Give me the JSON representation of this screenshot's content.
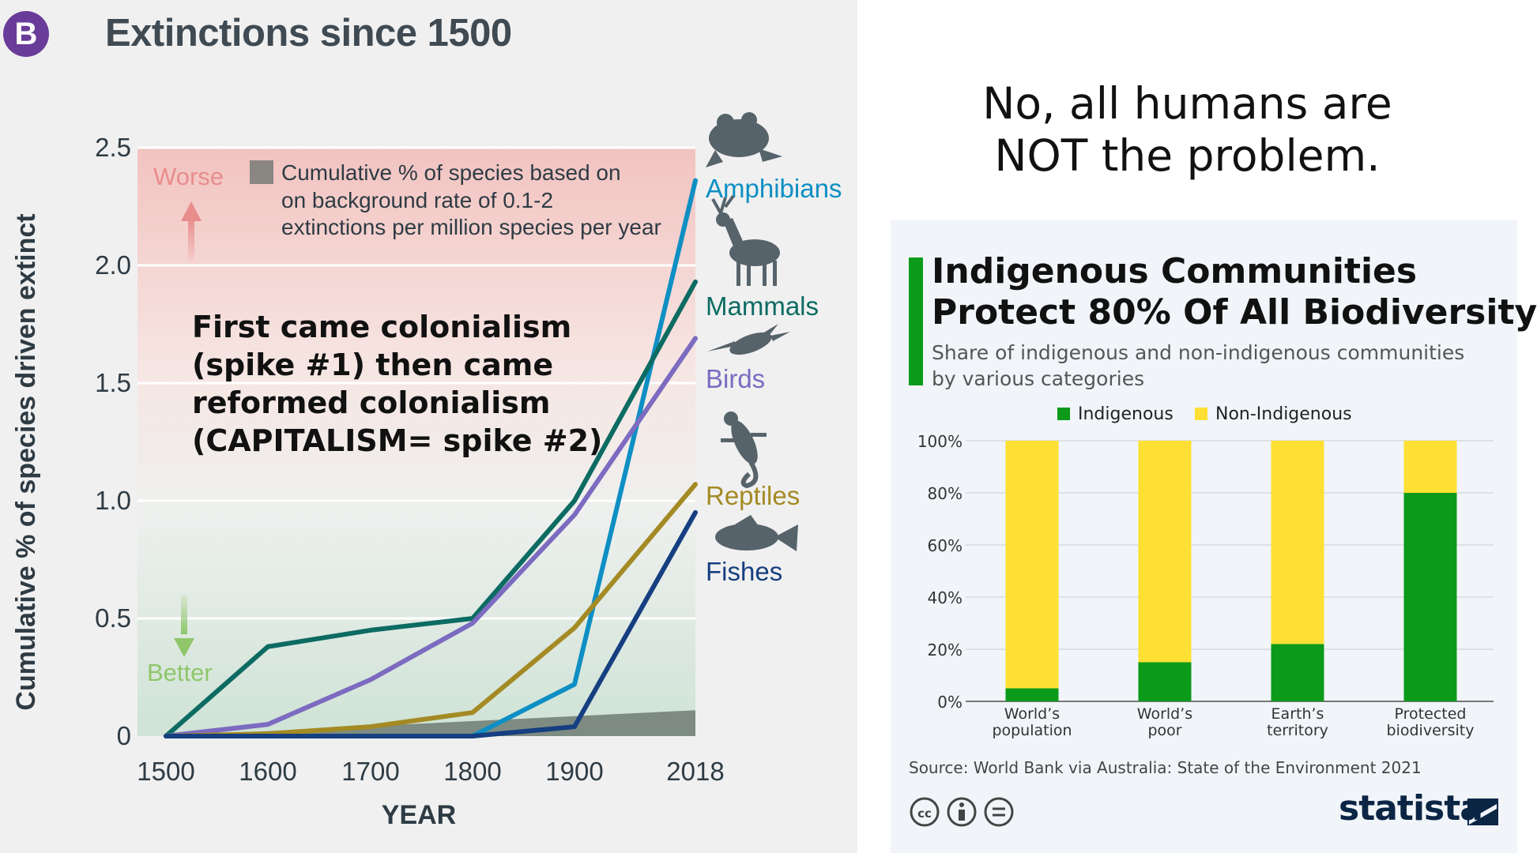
{
  "page": {
    "badge": "B",
    "left_title": "Extinctions since 1500",
    "headline": [
      "No, all humans are",
      "NOT the problem."
    ],
    "annotation": [
      "First came colonialism",
      "(spike #1) then came",
      "reformed colonialism",
      "(CAPITALISM= spike #2)"
    ]
  },
  "chart_data": [
    {
      "type": "line",
      "title": "Extinctions since 1500",
      "xlabel": "YEAR",
      "ylabel": "Cumulative % of species driven extinct",
      "x": [
        1500,
        1600,
        1700,
        1800,
        1900,
        2018
      ],
      "x_tick_labels": [
        "1500",
        "1600",
        "1700",
        "1800",
        "1900",
        "2018"
      ],
      "y_ticks": [
        0,
        0.5,
        1.0,
        1.5,
        2.0,
        2.5
      ],
      "y_tick_labels": [
        "0",
        "0.5",
        "1.0",
        "1.5",
        "2.0",
        "2.5"
      ],
      "ylim": [
        0,
        2.5
      ],
      "grid": true,
      "series": [
        {
          "name": "Amphibians",
          "color": "#0e8fc4",
          "values": [
            0,
            0,
            0,
            0,
            0.22,
            2.36
          ]
        },
        {
          "name": "Mammals",
          "color": "#0c6b62",
          "values": [
            0,
            0.38,
            0.45,
            0.5,
            1.0,
            1.93
          ]
        },
        {
          "name": "Birds",
          "color": "#7c6bc0",
          "values": [
            0,
            0.05,
            0.24,
            0.48,
            0.94,
            1.69
          ]
        },
        {
          "name": "Reptiles",
          "color": "#a48a24",
          "values": [
            0,
            0.01,
            0.04,
            0.1,
            0.46,
            1.07
          ]
        },
        {
          "name": "Fishes",
          "color": "#153f80",
          "values": [
            0,
            0,
            0,
            0,
            0.04,
            0.95
          ]
        }
      ],
      "background_band": {
        "label": "Cumulative % of species based on background rate of 0.1-2 extinctions per million species per year",
        "label_lines": [
          "Cumulative % of species based on",
          "on background rate of 0.1-2",
          "extinctions per million species per year"
        ],
        "start": 0.0,
        "end": 0.11,
        "color": "#7d8b82"
      },
      "worse_label": "Worse",
      "better_label": "Better",
      "colors": {
        "worse": "#e98c8c",
        "better": "#8fc66a",
        "zone_top": "#f2c3c0",
        "zone_bottom": "#cfe3d6"
      }
    },
    {
      "type": "bar",
      "stacked": true,
      "title": "Indigenous Communities Protect 80% Of All Biodiversity",
      "title_lines": [
        "Indigenous Communities",
        "Protect 80% Of All Biodiversity"
      ],
      "subtitle": "Share of indigenous and non-indigenous communities by various categories",
      "subtitle_lines": [
        "Share of indigenous and non-indigenous communities",
        "by various categories"
      ],
      "categories": [
        "World's population",
        "World's poor",
        "Earth's territory",
        "Protected biodiversity"
      ],
      "category_lines": [
        [
          "World’s",
          "population"
        ],
        [
          "World’s",
          "poor"
        ],
        [
          "Earth’s",
          "territory"
        ],
        [
          "Protected",
          "biodiversity"
        ]
      ],
      "series": [
        {
          "name": "Indigenous",
          "color": "#0b9a1a",
          "values": [
            5,
            15,
            22,
            80
          ]
        },
        {
          "name": "Non-Indigenous",
          "color": "#fde033",
          "values": [
            95,
            85,
            78,
            20
          ]
        }
      ],
      "y_tick_labels": [
        "0%",
        "20%",
        "40%",
        "60%",
        "80%",
        "100%"
      ],
      "ylim": [
        0,
        100
      ],
      "legend": "top-center",
      "source": "Source: World Bank via Australia: State of the Environment 2021",
      "brand": "statista",
      "accent_color": "#0b9a1a"
    }
  ]
}
